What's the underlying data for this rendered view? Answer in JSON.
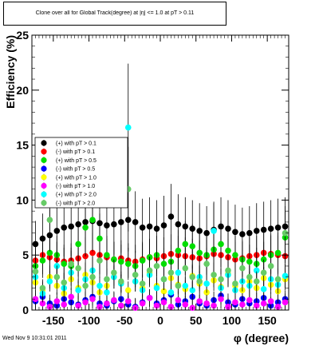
{
  "title": "Clone  over all for Global Track(degree) at |η| <= 1.0 at pT > 0.11",
  "timestamp": "Wed Nov  9 10:31:01 2011",
  "chart_data": {
    "type": "scatter",
    "xlabel": "φ (degree)",
    "ylabel": "Efficiency (%)",
    "xlim": [
      -180,
      180
    ],
    "ylim": [
      0,
      25
    ],
    "x_ticks": [
      -150,
      -100,
      -50,
      0,
      50,
      100,
      150
    ],
    "x_tick_labels": [
      "-150",
      "-100",
      "-50",
      "0",
      "50",
      "100",
      "150"
    ],
    "y_ticks": [
      0,
      5,
      10,
      15,
      20,
      25
    ],
    "y_tick_labels": [
      "0",
      "5",
      "10",
      "15",
      "20",
      "25"
    ],
    "legend_position": "left",
    "grid": false,
    "series": [
      {
        "name": "(+) with pT > 0.1",
        "color": "#000000",
        "x": [
          -175,
          -165,
          -155,
          -145,
          -135,
          -125,
          -115,
          -105,
          -95,
          -85,
          -75,
          -65,
          -55,
          -45,
          -35,
          -25,
          -15,
          -5,
          5,
          15,
          25,
          35,
          45,
          55,
          65,
          75,
          85,
          95,
          105,
          115,
          125,
          135,
          145,
          155,
          165,
          175
        ],
        "y": [
          6.0,
          6.5,
          6.8,
          7.2,
          7.5,
          7.6,
          7.8,
          8.0,
          8.1,
          7.9,
          7.7,
          7.8,
          8.0,
          8.2,
          8.0,
          7.5,
          7.6,
          7.4,
          7.7,
          8.5,
          7.8,
          7.6,
          7.4,
          7.2,
          7.0,
          7.3,
          7.6,
          7.4,
          7.1,
          6.9,
          7.0,
          7.2,
          7.3,
          7.4,
          7.5,
          7.6
        ]
      },
      {
        "name": "(-) with pT > 0.1",
        "color": "#ff0000",
        "x": [
          -175,
          -165,
          -155,
          -145,
          -135,
          -125,
          -115,
          -105,
          -95,
          -85,
          -75,
          -65,
          -55,
          -45,
          -35,
          -25,
          -15,
          -5,
          5,
          15,
          25,
          35,
          45,
          55,
          65,
          75,
          85,
          95,
          105,
          115,
          125,
          135,
          145,
          155,
          165,
          175
        ],
        "y": [
          4.5,
          5.0,
          4.8,
          4.6,
          4.4,
          4.5,
          4.7,
          4.9,
          5.2,
          5.0,
          4.8,
          4.6,
          4.7,
          4.5,
          4.4,
          4.6,
          4.8,
          4.7,
          4.9,
          5.1,
          5.0,
          4.9,
          4.8,
          4.7,
          4.9,
          5.1,
          5.0,
          4.8,
          4.6,
          4.7,
          4.9,
          5.0,
          5.2,
          5.1,
          5.0,
          4.9
        ]
      },
      {
        "name": "(+) with pT > 0.5",
        "color": "#00dd00",
        "x": [
          -175,
          -165,
          -155,
          -145,
          -135,
          -125,
          -115,
          -105,
          -95,
          -85,
          -75,
          -65,
          -55,
          -45,
          -35,
          -25,
          -15,
          -5,
          5,
          15,
          25,
          35,
          45,
          55,
          65,
          75,
          85,
          95,
          105,
          115,
          125,
          135,
          145,
          155,
          165,
          175
        ],
        "y": [
          4.0,
          4.5,
          5.2,
          5.0,
          4.2,
          4.0,
          6.0,
          7.5,
          8.2,
          6.5,
          5.0,
          4.6,
          4.4,
          4.2,
          4.0,
          4.5,
          4.8,
          5.0,
          4.2,
          4.4,
          5.4,
          6.0,
          5.8,
          5.2,
          5.0,
          5.5,
          6.0,
          5.4,
          5.0,
          4.6,
          4.4,
          4.2,
          4.6,
          5.0,
          5.2,
          6.6
        ]
      },
      {
        "name": "(-) with pT > 0.5",
        "color": "#0000ff",
        "x": [
          -175,
          -165,
          -155,
          -145,
          -135,
          -125,
          -115,
          -105,
          -95,
          -85,
          -75,
          -65,
          -55,
          -45,
          -35,
          -25,
          -15,
          -5,
          5,
          15,
          25,
          35,
          45,
          55,
          65,
          75,
          85,
          95,
          105,
          115,
          125,
          135,
          145,
          155,
          165,
          175
        ],
        "y": [
          0.8,
          1.2,
          0.6,
          0.4,
          1.0,
          0.7,
          0.5,
          0.9,
          1.2,
          0.6,
          0.4,
          0.8,
          1.0,
          0.5,
          0.3,
          0.7,
          1.1,
          0.6,
          0.9,
          1.4,
          0.5,
          0.8,
          1.2,
          0.6,
          0.4,
          0.9,
          1.3,
          0.7,
          0.5,
          1.0,
          0.6,
          0.8,
          1.1,
          0.4,
          0.7,
          1.0
        ]
      },
      {
        "name": "(+) with pT > 1.0",
        "color": "#ffff00",
        "x": [
          -175,
          -165,
          -155,
          -145,
          -135,
          -125,
          -115,
          -105,
          -95,
          -85,
          -75,
          -65,
          -55,
          -45,
          -35,
          -25,
          -15,
          -5,
          5,
          15,
          25,
          35,
          45,
          55,
          65,
          75,
          85,
          95,
          105,
          115,
          125,
          135,
          145,
          155,
          165,
          175
        ],
        "y": [
          2.5,
          1.8,
          3.0,
          2.2,
          1.5,
          2.8,
          2.0,
          3.2,
          2.5,
          1.6,
          2.2,
          3.0,
          2.4,
          1.8,
          2.6,
          2.0,
          3.4,
          2.2,
          1.7,
          2.9,
          2.3,
          1.9,
          3.1,
          2.4,
          1.6,
          2.7,
          2.1,
          3.3,
          2.2,
          1.8,
          2.6,
          2.0,
          2.9,
          2.3,
          1.7,
          2.8
        ]
      },
      {
        "name": "(-) with pT > 1.0",
        "color": "#ff00ff",
        "x": [
          -175,
          -165,
          -155,
          -145,
          -135,
          -125,
          -115,
          -105,
          -95,
          -85,
          -75,
          -65,
          -55,
          -45,
          -35,
          -25,
          -15,
          -5,
          5,
          15,
          25,
          35,
          45,
          55,
          65,
          75,
          85,
          95,
          105,
          115,
          125,
          135,
          145,
          155,
          165,
          175
        ],
        "y": [
          1.0,
          0.6,
          0.3,
          0.8,
          0.5,
          1.2,
          0.4,
          0.7,
          1.0,
          0.3,
          0.6,
          0.9,
          0.4,
          0.8,
          0.2,
          0.6,
          1.1,
          0.4,
          0.7,
          0.3,
          0.9,
          0.5,
          0.2,
          0.8,
          0.6,
          0.4,
          1.0,
          0.3,
          0.7,
          0.5,
          0.9,
          0.4,
          0.6,
          0.8,
          0.3,
          0.7
        ]
      },
      {
        "name": "(+) with pT > 2.0",
        "color": "#00ffff",
        "x": [
          -175,
          -165,
          -155,
          -145,
          -135,
          -125,
          -115,
          -105,
          -95,
          -85,
          -75,
          -65,
          -55,
          -45,
          -35,
          -25,
          -15,
          -5,
          5,
          15,
          25,
          35,
          45,
          55,
          65,
          75,
          85,
          95,
          105,
          115,
          125,
          135,
          145,
          155,
          165,
          175
        ],
        "y": [
          3.0,
          1.5,
          2.6,
          4.0,
          2.0,
          3.4,
          1.8,
          2.8,
          3.6,
          2.2,
          1.6,
          3.0,
          2.4,
          16.6,
          2.6,
          1.8,
          3.2,
          2.0,
          2.8,
          1.6,
          3.4,
          2.2,
          1.8,
          3.0,
          2.4,
          7.2,
          2.0,
          3.2,
          1.8,
          2.6,
          2.2,
          3.6,
          1.9,
          2.8,
          2.3,
          3.1
        ]
      },
      {
        "name": "(-) with pT > 2.0",
        "color": "#66cc66",
        "x": [
          -175,
          -165,
          -155,
          -145,
          -135,
          -125,
          -115,
          -105,
          -95,
          -85,
          -75,
          -65,
          -55,
          -45,
          -35,
          -25,
          -15,
          -5,
          5,
          15,
          25,
          35,
          45,
          55,
          65,
          75,
          85,
          95,
          105,
          115,
          125,
          135,
          145,
          155,
          165,
          175
        ],
        "y": [
          3.5,
          2.0,
          8.2,
          3.0,
          2.5,
          4.2,
          3.8,
          2.2,
          3.0,
          4.5,
          2.8,
          3.4,
          2.6,
          11.0,
          3.2,
          2.4,
          3.6,
          4.0,
          2.8,
          3.4,
          2.2,
          3.8,
          3.0,
          2.6,
          4.2,
          3.2,
          2.8,
          3.6,
          2.4,
          3.8,
          3.0,
          2.6,
          3.4,
          4.0,
          2.8,
          7.0
        ]
      }
    ]
  }
}
